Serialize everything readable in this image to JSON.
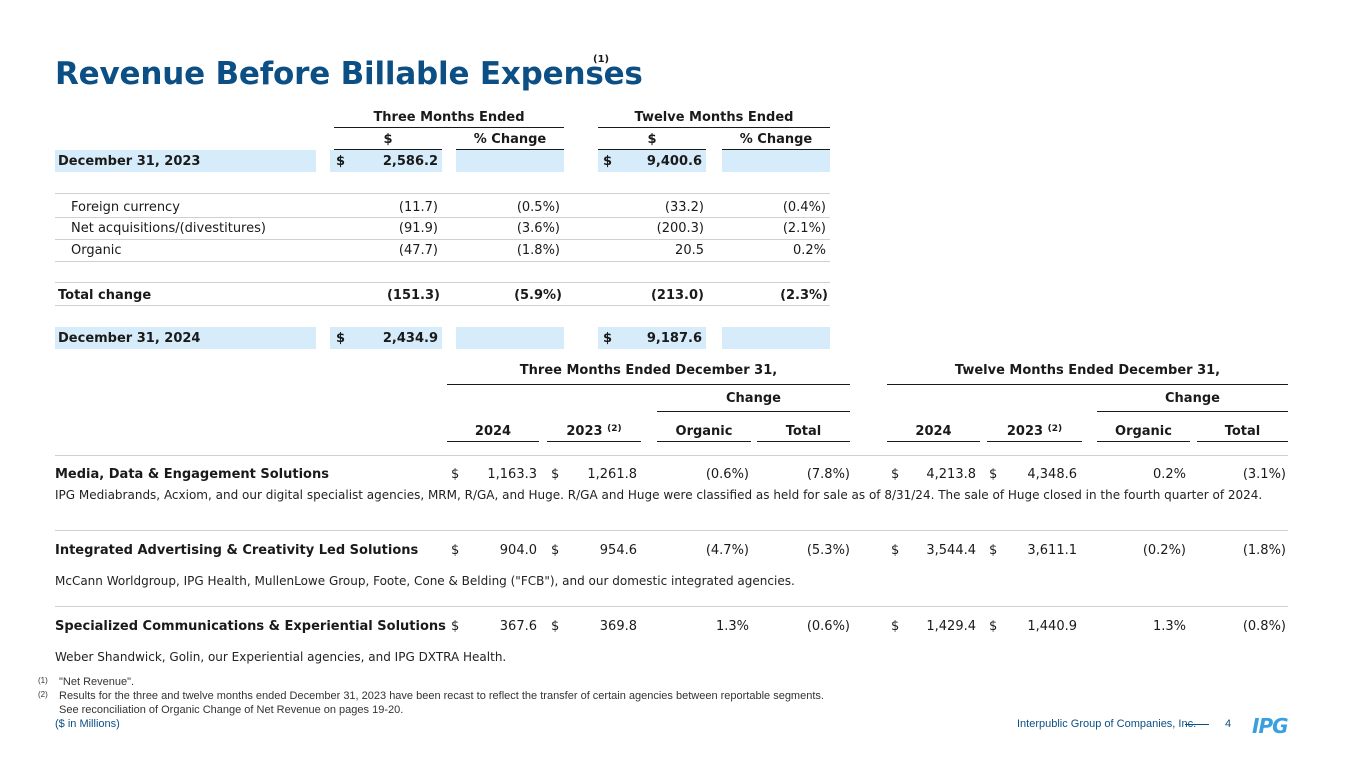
{
  "title": "Revenue Before Billable Expenses",
  "title_footnote": "(1)",
  "top_table": {
    "group_headers": [
      "Three Months Ended",
      "Twelve Months Ended"
    ],
    "col_headers": [
      "$",
      "% Change",
      "$",
      "% Change"
    ],
    "start_row": {
      "label": "December 31, 2023",
      "cur1": "$",
      "v1": "2,586.2",
      "cur2": "$",
      "v2": "9,400.6"
    },
    "rows": [
      {
        "label": "Foreign currency",
        "v1": "(11.7)",
        "p1": "(0.5%)",
        "v2": "(33.2)",
        "p2": "(0.4%)"
      },
      {
        "label": "Net acquisitions/(divestitures)",
        "v1": "(91.9)",
        "p1": "(3.6%)",
        "v2": "(200.3)",
        "p2": "(2.1%)"
      },
      {
        "label": "Organic",
        "v1": "(47.7)",
        "p1": "(1.8%)",
        "v2": "20.5",
        "p2": "0.2%"
      }
    ],
    "total_row": {
      "label": "Total change",
      "v1": "(151.3)",
      "p1": "(5.9%)",
      "v2": "(213.0)",
      "p2": "(2.3%)"
    },
    "end_row": {
      "label": "December 31, 2024",
      "cur1": "$",
      "v1": "2,434.9",
      "cur2": "$",
      "v2": "9,187.6"
    }
  },
  "seg_table": {
    "group_headers": [
      "Three Months Ended December 31,",
      "Twelve Months Ended December 31,"
    ],
    "change_label": "Change",
    "col_headers": {
      "y2024": "2024",
      "y2023": "2023",
      "y2023_note": "(2)",
      "organic": "Organic",
      "total": "Total"
    },
    "segments": [
      {
        "name": "Media, Data & Engagement Solutions",
        "cur": "$",
        "q2024": "1,163.3",
        "q2023": "1,261.8",
        "q_org": "(0.6%)",
        "q_tot": "(7.8%)",
        "y2024": "4,213.8",
        "y2023": "4,348.6",
        "y_org": "0.2%",
        "y_tot": "(3.1%)",
        "desc": "IPG Mediabrands, Acxiom, and our digital specialist agencies, MRM, R/GA, and Huge. R/GA and Huge were classified as held for sale as of 8/31/24. The sale of Huge closed in the fourth quarter of 2024."
      },
      {
        "name": "Integrated Advertising & Creativity Led Solutions",
        "cur": "$",
        "q2024": "904.0",
        "q2023": "954.6",
        "q_org": "(4.7%)",
        "q_tot": "(5.3%)",
        "y2024": "3,544.4",
        "y2023": "3,611.1",
        "y_org": "(0.2%)",
        "y_tot": "(1.8%)",
        "desc": "McCann Worldgroup, IPG Health, MullenLowe Group, Foote, Cone & Belding (\"FCB\"), and our domestic integrated agencies."
      },
      {
        "name": "Specialized Communications & Experiential Solutions",
        "cur": "$",
        "q2024": "367.6",
        "q2023": "369.8",
        "q_org": "1.3%",
        "q_tot": "(0.6%)",
        "y2024": "1,429.4",
        "y2023": "1,440.9",
        "y_org": "1.3%",
        "y_tot": "(0.8%)",
        "desc": "Weber Shandwick, Golin, our Experiential agencies, and IPG DXTRA Health."
      }
    ]
  },
  "footnotes": [
    {
      "mark": "(1)",
      "text": "\"Net Revenue\"."
    },
    {
      "mark": "(2)",
      "text": "Results for the three and twelve months ended December 31, 2023 have been recast to reflect the transfer of certain agencies between reportable segments."
    },
    {
      "mark": "",
      "text": "See reconciliation of Organic Change of Net Revenue on pages 19-20."
    }
  ],
  "units_note": "($ in Millions)",
  "footer": {
    "company": "Interpublic Group of Companies, Inc.",
    "page": "4",
    "logo": "IPG"
  },
  "colors": {
    "title": "#0b4f85",
    "highlight": "#d6ecfa",
    "accent": "#3aa0dd"
  }
}
